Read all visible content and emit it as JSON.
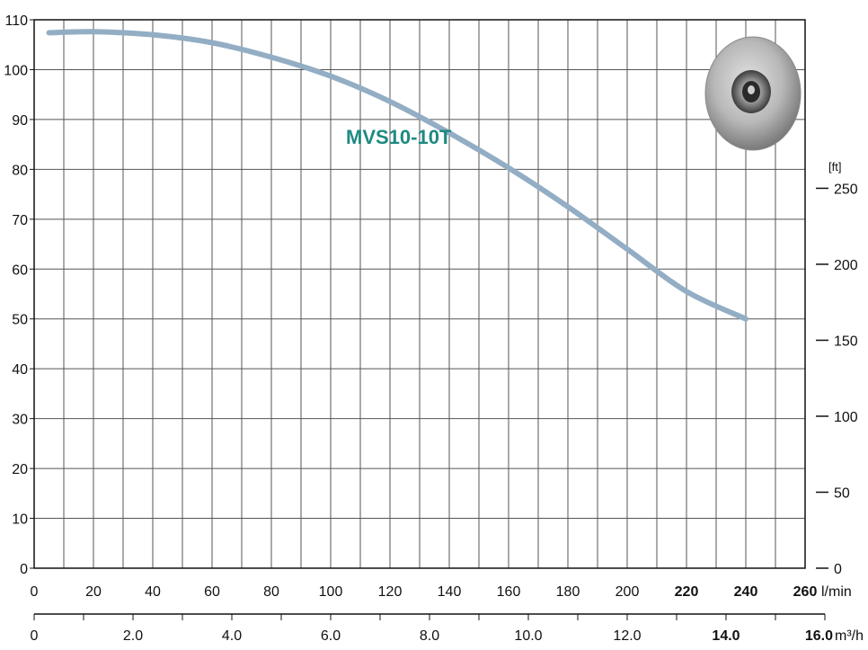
{
  "chart_data": {
    "type": "line",
    "series_label": "MVS10-10T",
    "x_flow_lmin": [
      5,
      20,
      40,
      60,
      80,
      100,
      120,
      140,
      160,
      180,
      200,
      220,
      240
    ],
    "y_head_m": [
      107.4,
      107.6,
      107.0,
      105.4,
      102.5,
      98.7,
      93.6,
      87.3,
      80.3,
      72.5,
      64.0,
      55.5,
      50.0
    ],
    "y_axis": {
      "ticks": [
        "0",
        "10",
        "20",
        "30",
        "40",
        "50",
        "60",
        "70",
        "80",
        "90",
        "100",
        "110"
      ],
      "range": [
        0,
        110
      ]
    },
    "y_axis_right": {
      "unit": "[ft]",
      "ticks": [
        "0",
        "50",
        "100",
        "150",
        "200",
        "250"
      ]
    },
    "x_axis_lmin": {
      "unit": "l/min",
      "range": [
        0,
        260
      ],
      "ticks": [
        "0",
        "20",
        "40",
        "60",
        "80",
        "100",
        "120",
        "140",
        "160",
        "180",
        "200",
        "220",
        "240",
        "260"
      ]
    },
    "x_axis_m3h": {
      "unit": "m³/h",
      "ticks": [
        "0",
        "2.0",
        "4.0",
        "6.0",
        "8.0",
        "10.0",
        "12.0",
        "14.0",
        "16.0"
      ]
    },
    "grid": true,
    "colors": {
      "curve": "#93aec4",
      "label": "#1e8a82",
      "grid": "#555555"
    }
  },
  "image": {
    "name": "pump-impeller-photo",
    "icon": "pump-impeller-icon"
  }
}
